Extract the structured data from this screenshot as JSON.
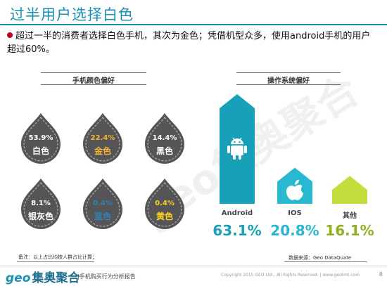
{
  "page": {
    "title": "过半用户选择白色",
    "intro": "超过一半的消费者选择白色手机，其次为金色；凭借机型众多，使用android手机的用户超过60%。",
    "watermark": "geo集奥聚合"
  },
  "colors": {
    "accent": "#1a8fb5",
    "bullet": "#c0001a",
    "drop": "#555558",
    "label_white": "#ffffff",
    "label_gold": "#f2b53a",
    "label_blue": "#2e84b5",
    "label_yellow": "#ffd21a",
    "android": "#18a0b8",
    "ios": "#28b8d0",
    "other": "#c4dc3c"
  },
  "chart_data": [
    {
      "type": "bar",
      "title": "手机颜色偏好",
      "categories": [
        "白色",
        "金色",
        "黑色",
        "银灰色",
        "蓝色",
        "黄色"
      ],
      "values": [
        53.9,
        22.4,
        14.4,
        8.1,
        0.4,
        0.4
      ],
      "value_labels": [
        "53.9%",
        "22.4%",
        "14.4%",
        "8.1%",
        "0.4%",
        "0.4%"
      ],
      "label_colors": [
        "#ffffff",
        "#f2b53a",
        "#ffffff",
        "#ffffff",
        "#2e84b5",
        "#ffd21a"
      ]
    },
    {
      "type": "bar",
      "title": "操作系统偏好",
      "categories": [
        "Android",
        "IOS",
        "其他"
      ],
      "values": [
        63.1,
        20.8,
        16.1
      ],
      "value_labels": [
        "63.1%",
        "20.8%",
        "16.1%"
      ],
      "bar_colors": [
        "#18a0b8",
        "#28b8d0",
        "#c4dc3c"
      ],
      "icons": [
        "android-icon",
        "apple-icon",
        ""
      ]
    }
  ],
  "note": "备注：以上占比均按人群占比计算；",
  "source": "数据来源：Geo DataQuate",
  "footer": {
    "logo_geo": "geo",
    "logo_cn": "集奥聚合",
    "report": "|手机购买行为分析报告",
    "copyright": "Copyright 2015 GEO Ltd., All Rights Reserved.  |  www.geotmt.com",
    "page": "8"
  }
}
